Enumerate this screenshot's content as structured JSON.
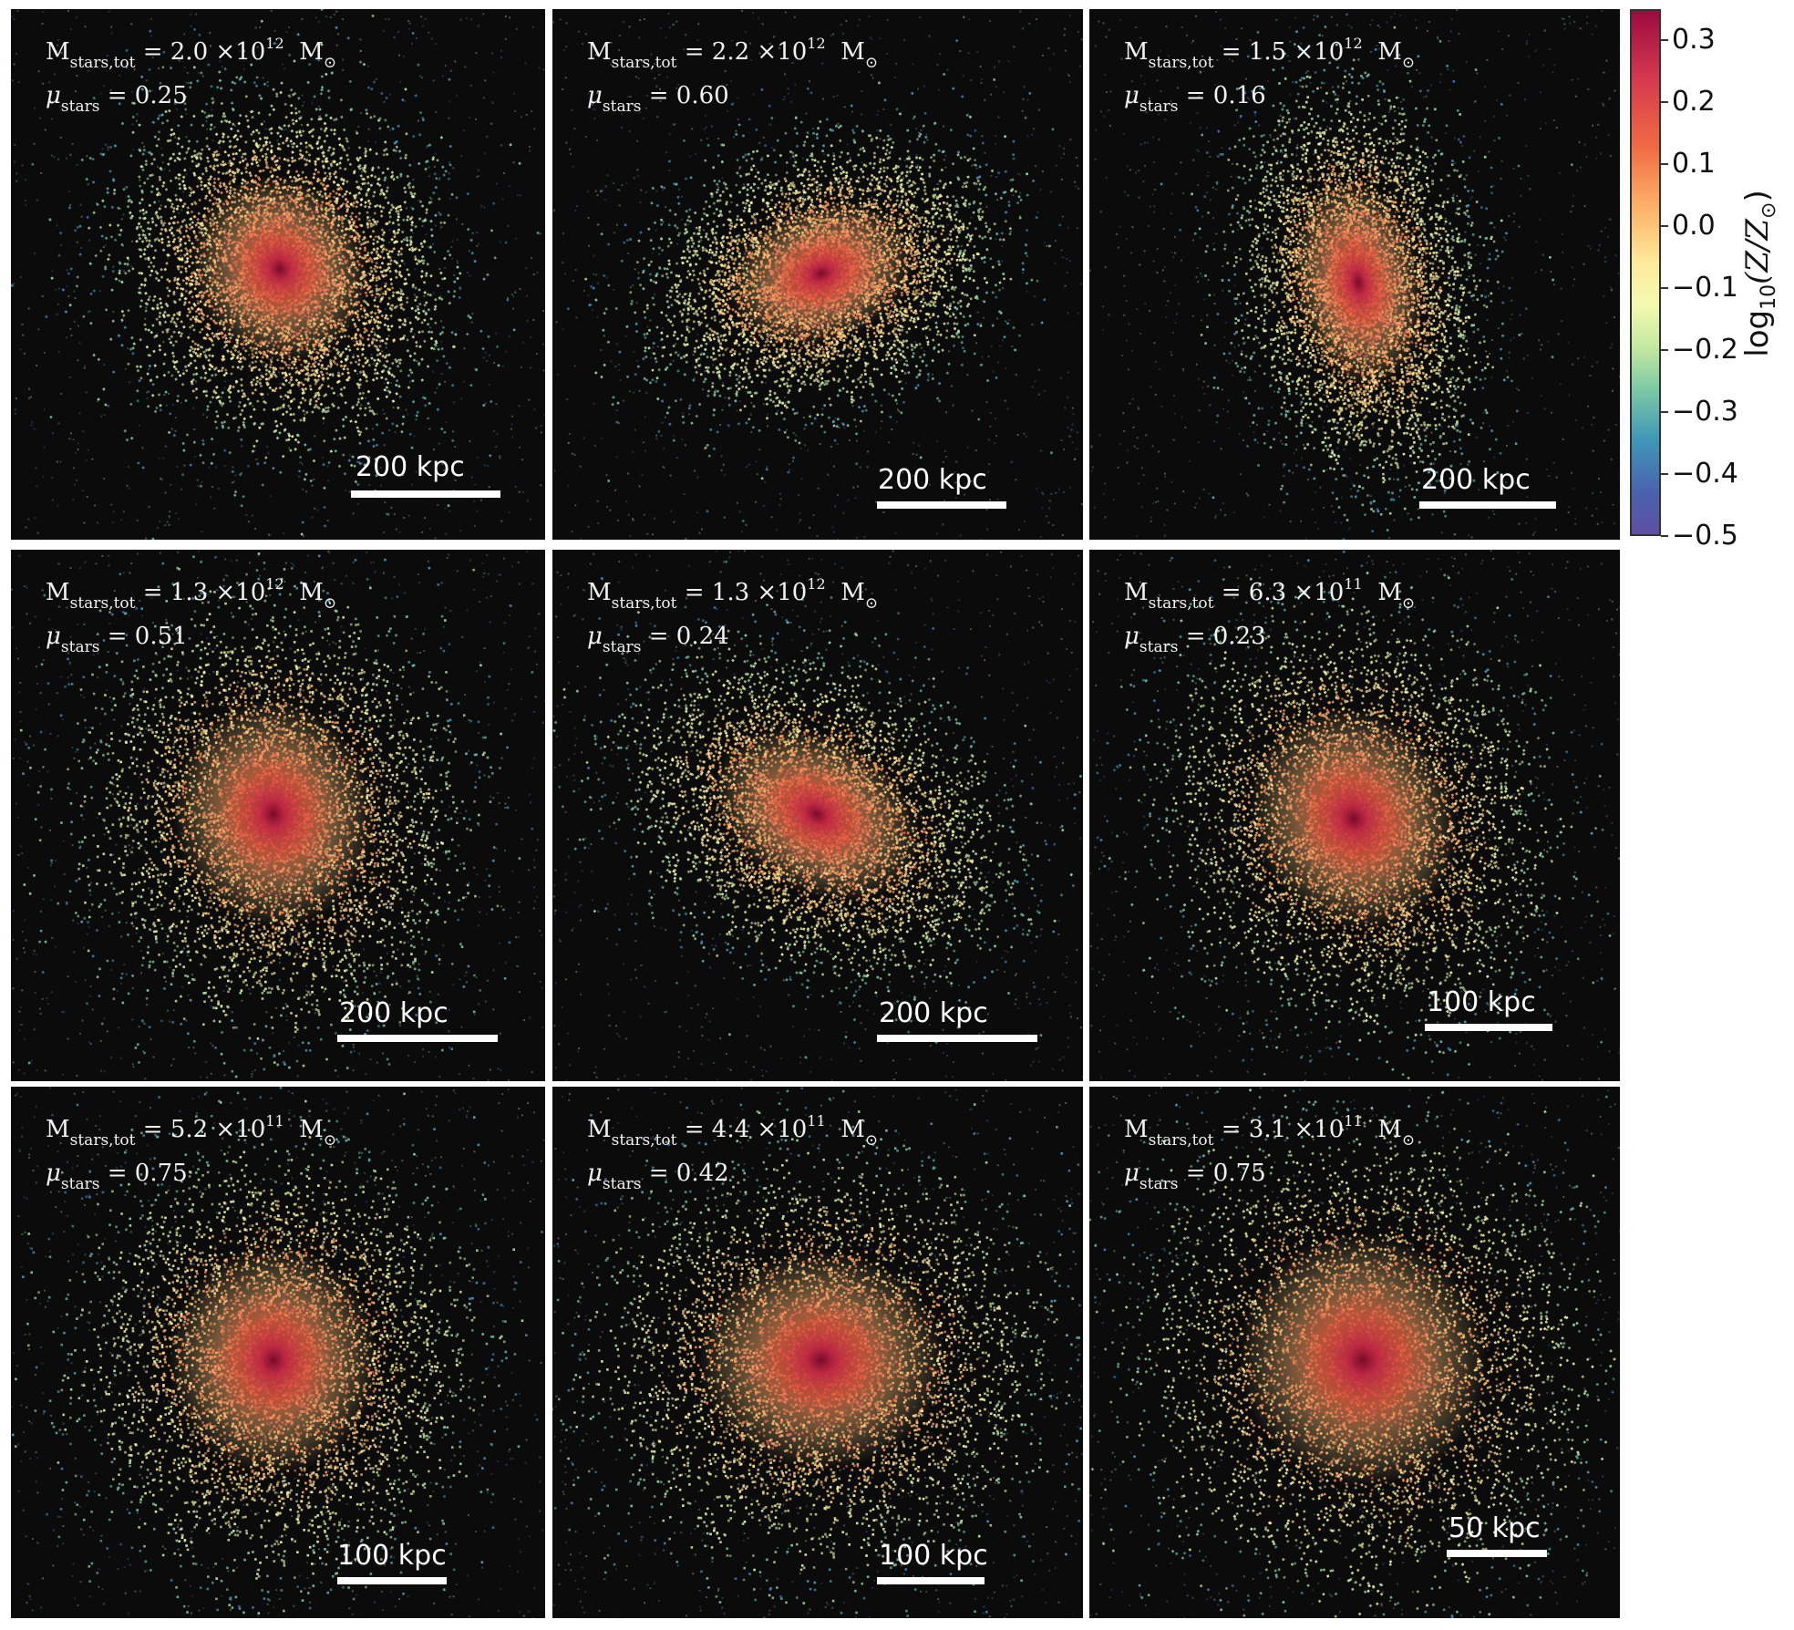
{
  "panels": [
    {
      "mass_mant": "2.0",
      "mass_exp": "12",
      "mu": "0.25",
      "scale": "200 kpc"
    },
    {
      "mass_mant": "2.2",
      "mass_exp": "12",
      "mu": "0.60",
      "scale": "200 kpc"
    },
    {
      "mass_mant": "1.5",
      "mass_exp": "12",
      "mu": "0.16",
      "scale": "200 kpc"
    },
    {
      "mass_mant": "1.3",
      "mass_exp": "12",
      "mu": "0.51",
      "scale": "200 kpc"
    },
    {
      "mass_mant": "1.3",
      "mass_exp": "12",
      "mu": "0.24",
      "scale": "200 kpc"
    },
    {
      "mass_mant": "6.3",
      "mass_exp": "11",
      "mu": "0.23",
      "scale": "100 kpc"
    },
    {
      "mass_mant": "5.2",
      "mass_exp": "11",
      "mu": "0.75",
      "scale": "100 kpc"
    },
    {
      "mass_mant": "4.4",
      "mass_exp": "11",
      "mu": "0.42",
      "scale": "100 kpc"
    },
    {
      "mass_mant": "3.1",
      "mass_exp": "11",
      "mu": "0.75",
      "scale": "50 kpc"
    }
  ],
  "text": {
    "mass_symbol": "M",
    "mass_subscript": "stars,tot",
    "times": "×10",
    "solar_m": "M",
    "solar": "⊙",
    "mu_symbol": "μ",
    "mu_subscript": "stars"
  },
  "colorbar": {
    "label_prefix": "log",
    "label_base": "10",
    "label_body": "(Z/Z",
    "label_sun": "⊙",
    "label_close": ")",
    "min": -0.5,
    "max": 0.35,
    "ticks": [
      "0.3",
      "0.2",
      "0.1",
      "0.0",
      "−0.1",
      "−0.2",
      "−0.3",
      "−0.4",
      "−0.5"
    ],
    "colors": [
      "#9b0b3f",
      "#d2364e",
      "#f06b43",
      "#fcb46a",
      "#fee99a",
      "#f4fab0",
      "#c7e9a0",
      "#7fcba4",
      "#3f97b7",
      "#4a62ad",
      "#5e4fa2"
    ]
  }
}
